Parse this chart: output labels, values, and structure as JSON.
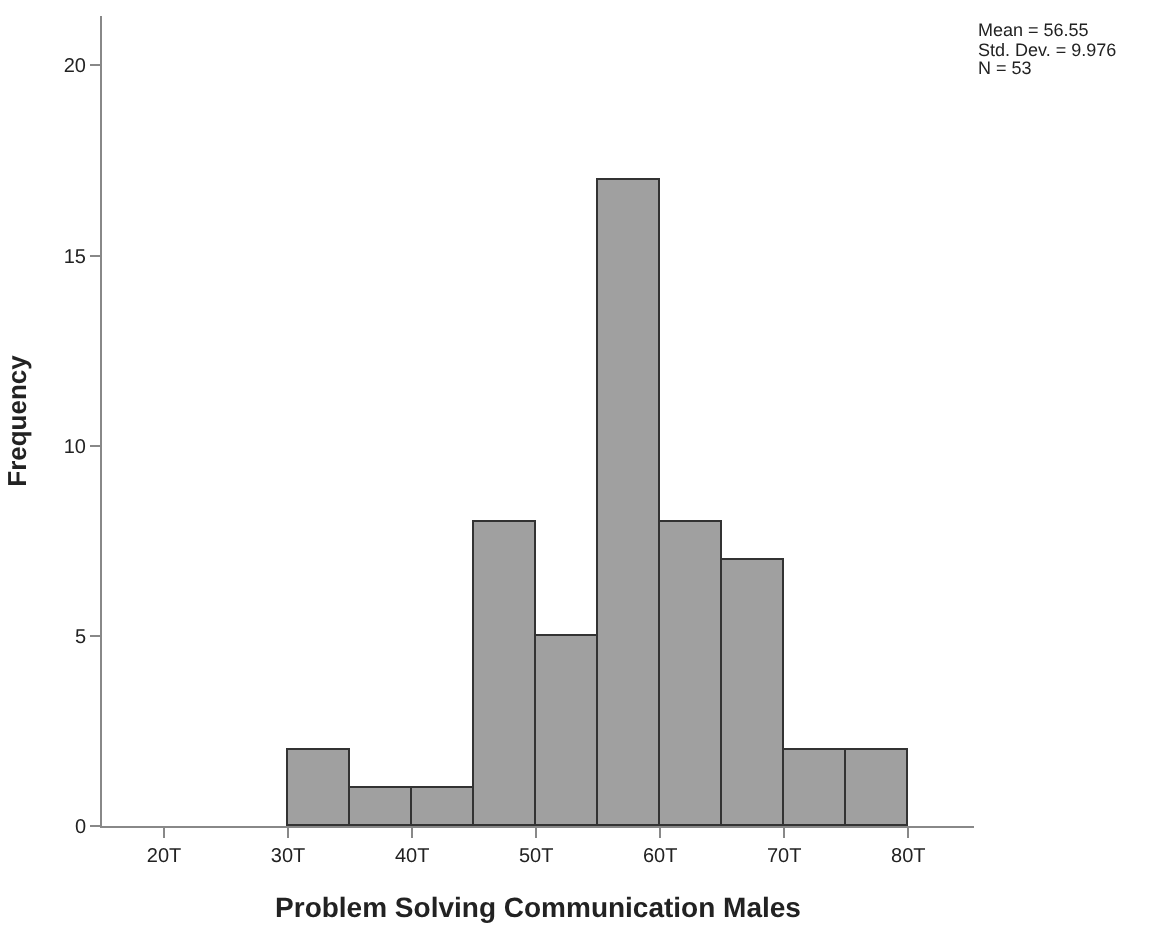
{
  "chart_data": {
    "type": "histogram",
    "xlabel": "Problem Solving Communication Males",
    "ylabel": "Frequency",
    "bins": [
      30,
      35,
      40,
      45,
      50,
      55,
      60,
      65,
      70,
      75,
      80
    ],
    "values": [
      2,
      1,
      1,
      8,
      5,
      17,
      8,
      7,
      2,
      2
    ],
    "color": "#a0a0a0",
    "xlim": [
      15,
      85.3
    ],
    "ylim": [
      0,
      21.3
    ],
    "xticks": [
      {
        "value": 20,
        "label": "20T"
      },
      {
        "value": 30,
        "label": "30T"
      },
      {
        "value": 40,
        "label": "40T"
      },
      {
        "value": 50,
        "label": "50T"
      },
      {
        "value": 60,
        "label": "60T"
      },
      {
        "value": 70,
        "label": "70T"
      },
      {
        "value": 80,
        "label": "80T"
      }
    ],
    "yticks": [
      0,
      5,
      10,
      15,
      20
    ],
    "annotations": [
      "Mean = 56.55",
      "Std. Dev. = 9.976",
      "N = 53"
    ]
  }
}
